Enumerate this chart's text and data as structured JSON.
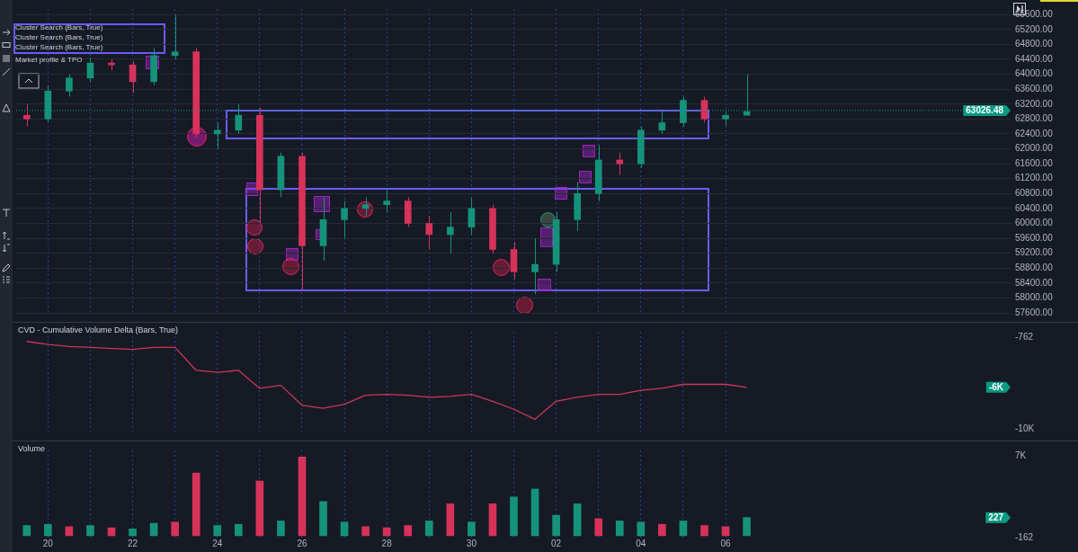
{
  "chart_data": [
    {
      "type": "candlestick",
      "tick_labels": "y",
      "grid": true,
      "annotations": [
        "Cluster Search (Bars, True)",
        "Cluster Search (Bars, True)",
        "Cluster Search (Bars, True)",
        "Market profile & TPO"
      ],
      "categories": [
        null,
        "20",
        null,
        null,
        null,
        "22",
        null,
        null,
        null,
        "24",
        null,
        null,
        null,
        "26",
        null,
        null,
        null,
        "28",
        null,
        null,
        null,
        "30",
        null,
        null,
        null,
        "02",
        null,
        null,
        null,
        "04",
        null,
        null,
        null,
        "06",
        null,
        null,
        null,
        null,
        null,
        null,
        null,
        null,
        null,
        null,
        null,
        null,
        null
      ],
      "ohlc": [
        [
          62900,
          63200,
          62600,
          62800
        ],
        [
          62800,
          63700,
          62700,
          63550
        ],
        [
          63550,
          64000,
          63400,
          63900
        ],
        [
          63900,
          64450,
          63800,
          64300
        ],
        [
          64300,
          64400,
          64100,
          64250
        ],
        [
          64250,
          64350,
          63500,
          63800
        ],
        [
          63800,
          64700,
          63700,
          64500
        ],
        [
          64500,
          65600,
          64400,
          64600
        ],
        [
          64600,
          64700,
          62300,
          62400
        ],
        [
          62400,
          62700,
          62000,
          62500
        ],
        [
          62500,
          63200,
          62400,
          62900
        ],
        [
          62900,
          63100,
          60000,
          60900
        ],
        [
          60900,
          61900,
          60700,
          61800
        ],
        [
          61800,
          61900,
          58200,
          59400
        ],
        [
          59400,
          60700,
          59000,
          60100
        ],
        [
          60100,
          60600,
          59600,
          60400
        ],
        [
          60400,
          60700,
          60200,
          60500
        ],
        [
          60500,
          60900,
          60300,
          60600
        ],
        [
          60600,
          60700,
          59900,
          60000
        ],
        [
          60000,
          60200,
          59300,
          59700
        ],
        [
          59700,
          60300,
          59200,
          59900
        ],
        [
          59900,
          60700,
          59700,
          60400
        ],
        [
          60400,
          60500,
          59200,
          59300
        ],
        [
          59300,
          59500,
          58500,
          58700
        ],
        [
          58700,
          59600,
          58100,
          58900
        ],
        [
          58900,
          60300,
          58700,
          60100
        ],
        [
          60100,
          61100,
          59800,
          60800
        ],
        [
          60800,
          62100,
          60600,
          61700
        ],
        [
          61700,
          61900,
          61300,
          61600
        ],
        [
          61600,
          62600,
          61500,
          62500
        ],
        [
          62500,
          63000,
          62400,
          62700
        ],
        [
          62700,
          63400,
          62600,
          63300
        ],
        [
          63300,
          63400,
          62700,
          62800
        ],
        [
          62800,
          63000,
          62600,
          62900
        ],
        [
          62900,
          64000,
          62900,
          63000
        ],
        null,
        null,
        null,
        null,
        null,
        null,
        null,
        null,
        null,
        null,
        null,
        null
      ],
      "colors": [
        "#d6325a",
        "#15937a",
        "#15937a",
        "#15937a",
        "#d6325a",
        "#d6325a",
        "#15937a",
        "#15937a",
        "#d6325a",
        "#15937a",
        "#15937a",
        "#d6325a",
        "#15937a",
        "#d6325a",
        "#15937a",
        "#15937a",
        "#15937a",
        "#15937a",
        "#d6325a",
        "#d6325a",
        "#15937a",
        "#15937a",
        "#d6325a",
        "#d6325a",
        "#15937a",
        "#15937a",
        "#15937a",
        "#15937a",
        "#d6325a",
        "#15937a",
        "#15937a",
        "#15937a",
        "#d6325a",
        "#15937a",
        "#15937a",
        null,
        null,
        null,
        null,
        null,
        null,
        null,
        null,
        null,
        null,
        null,
        null
      ],
      "ylim": [
        57600,
        65750
      ],
      "yticks": [
        {
          "value": 57600,
          "label": "57600.00"
        },
        {
          "value": 58000,
          "label": "58000.00"
        },
        {
          "value": 58400,
          "label": "58400.00"
        },
        {
          "value": 58800,
          "label": "58800.00"
        },
        {
          "value": 59200,
          "label": "59200.00"
        },
        {
          "value": 59600,
          "label": "59600.00"
        },
        {
          "value": 60000,
          "label": "60000.00"
        },
        {
          "value": 60400,
          "label": "60400.00"
        },
        {
          "value": 60800,
          "label": "60800.00"
        },
        {
          "value": 61200,
          "label": "61200.00"
        },
        {
          "value": 61600,
          "label": "61600.00"
        },
        {
          "value": 62000,
          "label": "62000.00"
        },
        {
          "value": 62400,
          "label": "62400.00"
        },
        {
          "value": 62800,
          "label": "62800.00"
        },
        {
          "value": 63200,
          "label": "63200.00"
        },
        {
          "value": 63600,
          "label": "63600.00"
        },
        {
          "value": 64000,
          "label": "64000.00"
        },
        {
          "value": 64400,
          "label": "64400.00"
        },
        {
          "value": 64800,
          "label": "64800.00"
        },
        {
          "value": 65200,
          "label": "65200.00"
        },
        {
          "value": 65600,
          "label": "65600.00"
        }
      ],
      "ref_lines": [
        {
          "axis": "y",
          "value": 63026.48,
          "label": "63026.48",
          "color": "#089981",
          "line_style": "dotted"
        }
      ]
    },
    {
      "type": "line",
      "title": "CVD - Cumulative Volume Delta (Bars, True)",
      "tick_labels": "y",
      "grid": "x",
      "categories": [
        null,
        "20",
        null,
        null,
        null,
        "22",
        null,
        null,
        null,
        "24",
        null,
        null,
        null,
        "26",
        null,
        null,
        null,
        "28",
        null,
        null,
        null,
        "30",
        null,
        null,
        null,
        "02",
        null,
        null,
        null,
        "04",
        null,
        null,
        null,
        "06",
        null,
        null,
        null,
        null,
        null,
        null,
        null,
        null,
        null,
        null,
        null,
        null,
        null
      ],
      "series": [
        {
          "color": "#c8385a",
          "values": [
            -1200,
            -1500,
            -1700,
            -1800,
            -1900,
            -2000,
            -1800,
            -1800,
            -4100,
            -4300,
            -4100,
            -5900,
            -5600,
            -7600,
            -7900,
            -7500,
            -6600,
            -6500,
            -6600,
            -6800,
            -6700,
            -6500,
            -7200,
            -8000,
            -9000,
            -7200,
            -6800,
            -6500,
            -6500,
            -6100,
            -5900,
            -5500,
            -5500,
            -5500,
            -5800,
            null,
            null,
            null,
            null,
            null,
            null,
            null,
            null,
            null,
            null,
            null,
            null
          ]
        }
      ],
      "annotations": [
        "-6K"
      ],
      "ylim": [
        -10230,
        -230
      ],
      "yticks": [
        -762,
        {
          "value": -10000,
          "label": "-10K"
        }
      ]
    },
    {
      "type": "bar",
      "title": "Volume",
      "grid": "x",
      "categories": [
        null,
        "20",
        null,
        null,
        null,
        "22",
        null,
        null,
        null,
        "24",
        null,
        null,
        null,
        "26",
        null,
        null,
        null,
        "28",
        null,
        null,
        null,
        "30",
        null,
        null,
        null,
        "02",
        null,
        null,
        null,
        "04",
        null,
        null,
        null,
        "06",
        null,
        null,
        null,
        null,
        null,
        null,
        null,
        null,
        null,
        null,
        null,
        null,
        null
      ],
      "values": [
        900,
        1000,
        800,
        900,
        700,
        600,
        1100,
        1200,
        5500,
        900,
        1000,
        4800,
        1300,
        6900,
        3000,
        1200,
        800,
        700,
        900,
        1300,
        2800,
        1200,
        2800,
        3400,
        4100,
        1800,
        2800,
        1500,
        1300,
        1200,
        1000,
        1300,
        900,
        800,
        1600,
        null,
        null,
        null,
        null,
        null,
        null,
        null,
        null,
        null,
        null,
        null,
        null
      ],
      "colors": [
        "#15937a",
        "#15937a",
        "#d6325a",
        "#15937a",
        "#d6325a",
        "#15937a",
        "#15937a",
        "#d6325a",
        "#d6325a",
        "#15937a",
        "#15937a",
        "#d6325a",
        "#15937a",
        "#d6325a",
        "#15937a",
        "#15937a",
        "#d6325a",
        "#d6325a",
        "#d6325a",
        "#15937a",
        "#d6325a",
        "#15937a",
        "#d6325a",
        "#15937a",
        "#15937a",
        "#15937a",
        "#15937a",
        "#d6325a",
        "#15937a",
        "#15937a",
        "#d6325a",
        "#15937a",
        "#d6325a",
        "#d6325a",
        "#15937a",
        null,
        null,
        null,
        null,
        null,
        null,
        null,
        null,
        null,
        null,
        null,
        null
      ],
      "annotations": [
        "227"
      ],
      "ylim": [
        -162,
        7480
      ],
      "yticks": [
        {
          "value": 7000,
          "label": "7K"
        },
        -162
      ]
    }
  ]
}
